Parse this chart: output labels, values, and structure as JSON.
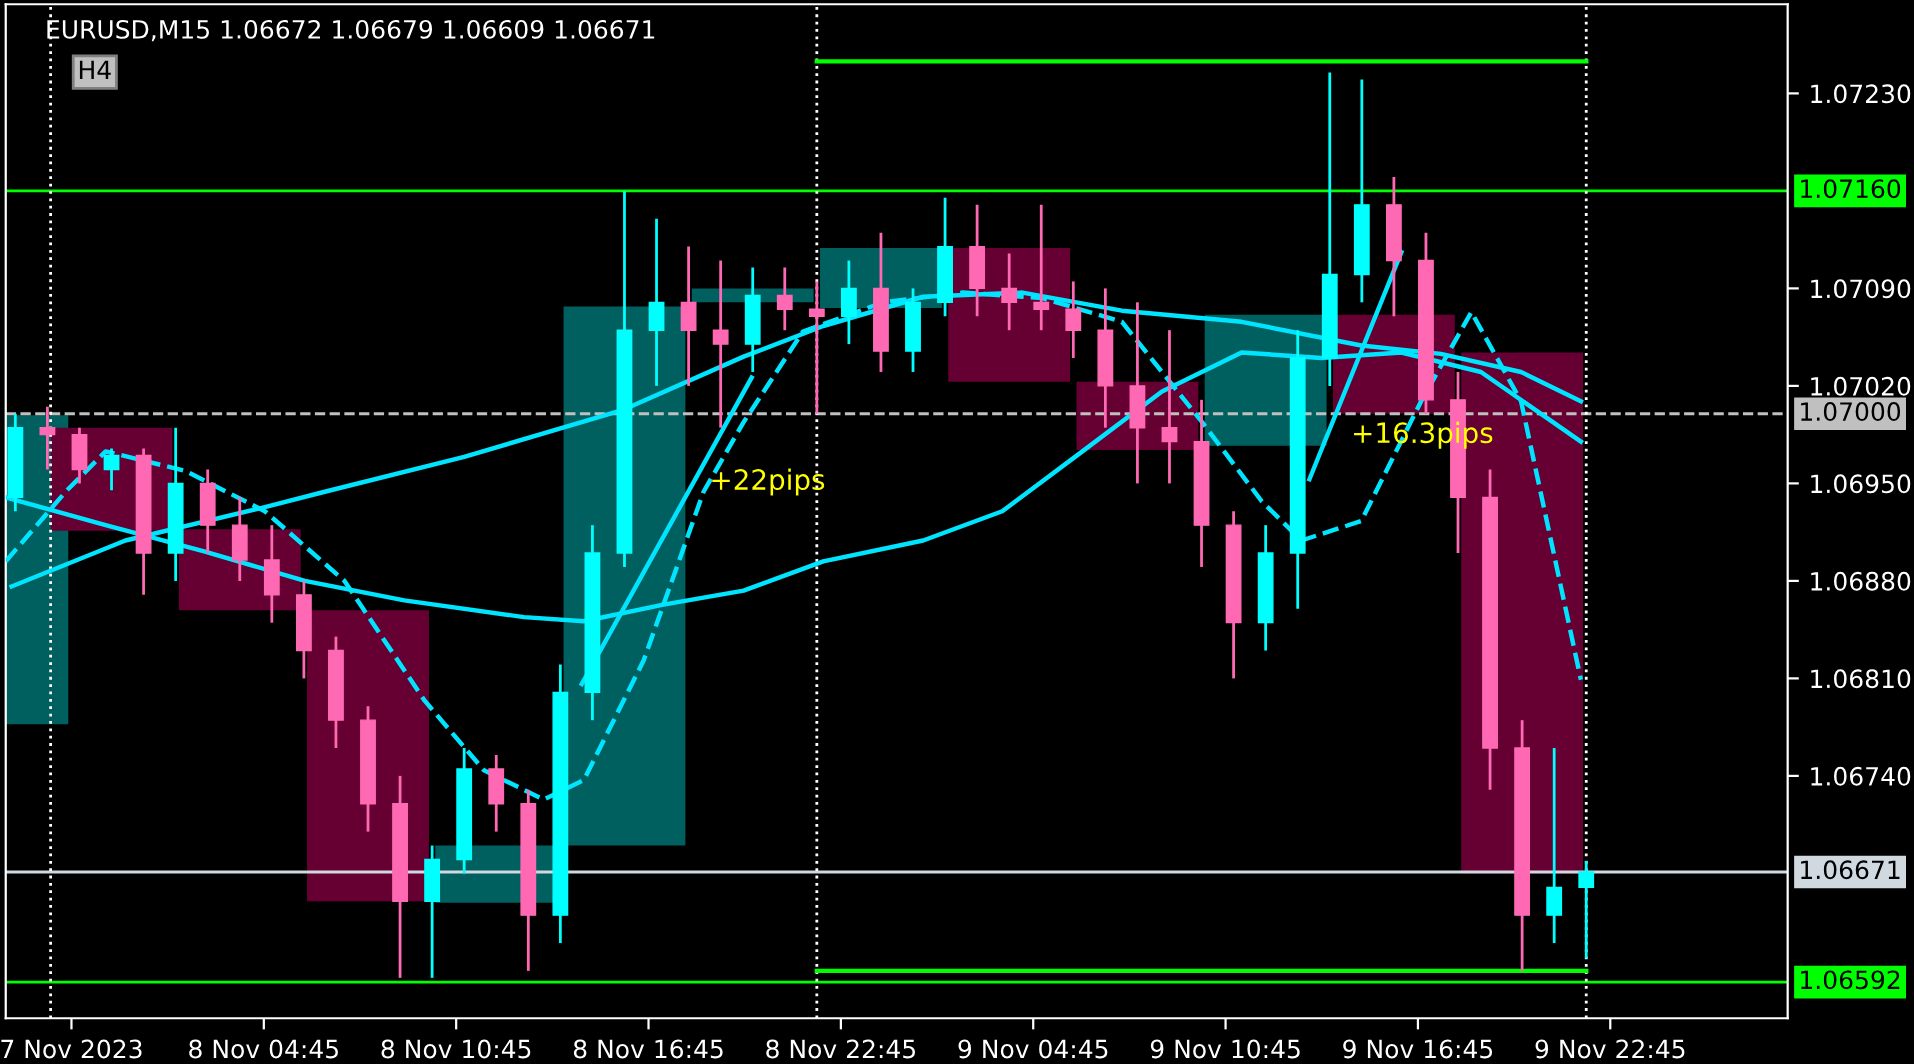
{
  "chart_data": {
    "type": "candlestick",
    "title": "EURUSD,M15 1.06672 1.06679 1.06609 1.06671",
    "x": [
      "2023-11-07T21:00",
      "2023-11-07T22:00",
      "2023-11-07T23:00",
      "2023-11-08T00:00",
      "2023-11-08T01:00",
      "2023-11-08T02:00",
      "2023-11-08T03:00",
      "2023-11-08T04:00",
      "2023-11-08T05:00",
      "2023-11-08T06:00",
      "2023-11-08T07:00",
      "2023-11-08T08:00",
      "2023-11-08T09:00",
      "2023-11-08T10:00",
      "2023-11-08T11:00",
      "2023-11-08T12:00",
      "2023-11-08T13:00",
      "2023-11-08T14:00",
      "2023-11-08T15:00",
      "2023-11-08T16:00",
      "2023-11-08T17:00",
      "2023-11-08T18:00",
      "2023-11-08T19:00",
      "2023-11-08T20:00",
      "2023-11-08T21:00",
      "2023-11-08T22:00",
      "2023-11-08T23:00",
      "2023-11-09T00:00",
      "2023-11-09T01:00",
      "2023-11-09T02:00",
      "2023-11-09T03:00",
      "2023-11-09T04:00",
      "2023-11-09T05:00",
      "2023-11-09T06:00",
      "2023-11-09T07:00",
      "2023-11-09T08:00",
      "2023-11-09T09:00",
      "2023-11-09T10:00",
      "2023-11-09T11:00",
      "2023-11-09T12:00",
      "2023-11-09T13:00",
      "2023-11-09T14:00",
      "2023-11-09T15:00",
      "2023-11-09T16:00",
      "2023-11-09T17:00",
      "2023-11-09T18:00",
      "2023-11-09T19:00",
      "2023-11-09T20:00",
      "2023-11-09T21:00",
      "2023-11-09T22:00"
    ],
    "ohlc": [
      [
        1.0694,
        1.07,
        1.0693,
        1.0699
      ],
      [
        1.0699,
        1.07005,
        1.0696,
        1.06985
      ],
      [
        1.06985,
        1.0699,
        1.0695,
        1.0696
      ],
      [
        1.0696,
        1.06975,
        1.06945,
        1.0697
      ],
      [
        1.0697,
        1.06975,
        1.0687,
        1.069
      ],
      [
        1.069,
        1.0699,
        1.0688,
        1.0695
      ],
      [
        1.0695,
        1.0696,
        1.069,
        1.0692
      ],
      [
        1.0692,
        1.0694,
        1.0688,
        1.06895
      ],
      [
        1.06895,
        1.0692,
        1.0685,
        1.0687
      ],
      [
        1.0687,
        1.0688,
        1.0681,
        1.0683
      ],
      [
        1.0683,
        1.0684,
        1.0676,
        1.0678
      ],
      [
        1.0678,
        1.0679,
        1.067,
        1.0672
      ],
      [
        1.0672,
        1.0674,
        1.06595,
        1.0665
      ],
      [
        1.0665,
        1.0669,
        1.06595,
        1.0668
      ],
      [
        1.0668,
        1.0676,
        1.0667,
        1.06745
      ],
      [
        1.06745,
        1.06755,
        1.067,
        1.0672
      ],
      [
        1.0672,
        1.0673,
        1.066,
        1.0664
      ],
      [
        1.0664,
        1.0682,
        1.0662,
        1.068
      ],
      [
        1.068,
        1.0692,
        1.0678,
        1.069
      ],
      [
        1.069,
        1.0716,
        1.0689,
        1.0706
      ],
      [
        1.0706,
        1.0714,
        1.0702,
        1.0708
      ],
      [
        1.0708,
        1.0712,
        1.0702,
        1.0706
      ],
      [
        1.0706,
        1.0711,
        1.0699,
        1.0705
      ],
      [
        1.0705,
        1.07105,
        1.0703,
        1.07085
      ],
      [
        1.07085,
        1.07105,
        1.0706,
        1.07075
      ],
      [
        1.07075,
        1.07095,
        1.07,
        1.0707
      ],
      [
        1.0707,
        1.0711,
        1.0705,
        1.0709
      ],
      [
        1.0709,
        1.0713,
        1.0703,
        1.07045
      ],
      [
        1.07045,
        1.0709,
        1.0703,
        1.0708
      ],
      [
        1.0708,
        1.07155,
        1.0707,
        1.0712
      ],
      [
        1.0712,
        1.0715,
        1.0707,
        1.0709
      ],
      [
        1.0709,
        1.07115,
        1.0706,
        1.0708
      ],
      [
        1.0708,
        1.0715,
        1.0706,
        1.07075
      ],
      [
        1.07075,
        1.07095,
        1.0704,
        1.0706
      ],
      [
        1.0706,
        1.0709,
        1.0699,
        1.0702
      ],
      [
        1.0702,
        1.0708,
        1.0695,
        1.0699
      ],
      [
        1.0699,
        1.0706,
        1.0695,
        1.0698
      ],
      [
        1.0698,
        1.0701,
        1.0689,
        1.0692
      ],
      [
        1.0692,
        1.0693,
        1.0681,
        1.0685
      ],
      [
        1.0685,
        1.0692,
        1.0683,
        1.069
      ],
      [
        1.069,
        1.0706,
        1.0686,
        1.0704
      ],
      [
        1.0704,
        1.07245,
        1.0702,
        1.071
      ],
      [
        1.071,
        1.0724,
        1.0708,
        1.0715
      ],
      [
        1.0715,
        1.0717,
        1.0707,
        1.0711
      ],
      [
        1.0711,
        1.0713,
        1.07,
        1.0701
      ],
      [
        1.0701,
        1.0703,
        1.069,
        1.0694
      ],
      [
        1.0694,
        1.0696,
        1.0673,
        1.0676
      ],
      [
        1.0676,
        1.0678,
        1.066,
        1.0664
      ],
      [
        1.0664,
        1.0676,
        1.0662,
        1.0666
      ],
      [
        1.0666,
        1.06679,
        1.06609,
        1.06671
      ]
    ],
    "colors": [
      "#00ffff",
      "#ff69b4",
      "#ff69b4",
      "#00ffff",
      "#ff69b4",
      "#00ffff",
      "#ff69b4",
      "#ff69b4",
      "#ff69b4",
      "#ff69b4",
      "#ff69b4",
      "#ff69b4",
      "#ff69b4",
      "#00ffff",
      "#00ffff",
      "#ff69b4",
      "#ff69b4",
      "#00ffff",
      "#00ffff",
      "#00ffff",
      "#00ffff",
      "#ff69b4",
      "#ff69b4",
      "#00ffff",
      "#ff69b4",
      "#ff69b4",
      "#00ffff",
      "#ff69b4",
      "#00ffff",
      "#00ffff",
      "#ff69b4",
      "#ff69b4",
      "#ff69b4",
      "#ff69b4",
      "#ff69b4",
      "#ff69b4",
      "#ff69b4",
      "#ff69b4",
      "#ff69b4",
      "#00ffff",
      "#00ffff",
      "#00ffff",
      "#00ffff",
      "#ff69b4",
      "#ff69b4",
      "#ff69b4",
      "#ff69b4",
      "#ff69b4",
      "#00ffff",
      "#00ffff"
    ],
    "series": [
      {
        "type": "bar",
        "x": [
          "2023-11-07T20:45",
          "2023-11-08T00:00",
          "2023-11-08T04:00",
          "2023-11-08T08:00",
          "2023-11-08T12:00",
          "2023-11-08T16:00",
          "2023-11-08T20:00",
          "2023-11-09T00:00",
          "2023-11-09T04:00",
          "2023-11-09T08:00",
          "2023-11-09T12:00",
          "2023-11-09T16:00",
          "2023-11-09T20:00"
        ],
        "base": [
          1.06777,
          1.06916,
          1.06859,
          1.0665,
          1.06649,
          1.0669,
          1.0708,
          1.07076,
          1.07023,
          1.06974,
          1.06977,
          1.07,
          1.0667
        ],
        "values": [
          0.00222,
          0.00074,
          0.00058,
          0.00209,
          0.00041,
          0.00387,
          0.0001,
          0.00043,
          0.00096,
          0.00049,
          0.00094,
          0.00071,
          0.00374
        ],
        "colors": [
          "#006060",
          "#660033",
          "#660033",
          "#660033",
          "#006060",
          "#006060",
          "#006060",
          "#006060",
          "#660033",
          "#660033",
          "#006060",
          "#660033",
          "#660033"
        ]
      },
      {
        "type": "line",
        "color": "#00e5ff",
        "line_style": "solid",
        "x": [
          "2023-11-07T20:53",
          "2023-11-08T00:26",
          "2023-11-08T04:47",
          "2023-11-08T06:39",
          "2023-11-08T11:00",
          "2023-11-08T15:59",
          "2023-11-08T19:43",
          "2023-11-08T22:12",
          "2023-11-09T01:19",
          "2023-11-09T04:25",
          "2023-11-09T07:31",
          "2023-11-09T11:15",
          "2023-11-09T14:59",
          "2023-11-09T17:28",
          "2023-11-09T19:58",
          "2023-11-09T21:50"
        ],
        "values": [
          1.06876,
          1.06909,
          1.06933,
          1.06944,
          1.06969,
          1.07003,
          1.07041,
          1.07063,
          1.07084,
          1.07087,
          1.07074,
          1.07066,
          1.07049,
          1.07043,
          1.0703,
          1.07009
        ]
      },
      {
        "type": "line",
        "color": "#00e5ff",
        "line_style": "solid",
        "x": [
          "2023-11-07T20:42",
          "2023-11-07T23:49",
          "2023-11-08T02:55",
          "2023-11-08T06:02",
          "2023-11-08T09:08",
          "2023-11-08T12:52",
          "2023-11-08T14:44",
          "2023-11-08T17:13",
          "2023-11-08T19:43",
          "2023-11-08T22:12",
          "2023-11-09T01:19",
          "2023-11-09T03:47",
          "2023-11-09T06:17",
          "2023-11-09T08:46",
          "2023-11-09T11:15",
          "2023-11-09T13:44",
          "2023-11-09T16:14",
          "2023-11-09T18:43",
          "2023-11-09T21:50"
        ],
        "values": [
          1.0694,
          1.0692,
          1.06901,
          1.0688,
          1.06866,
          1.06854,
          1.06851,
          1.06863,
          1.06873,
          1.06894,
          1.06909,
          1.0693,
          1.06973,
          1.07016,
          1.07044,
          1.0704,
          1.07044,
          1.0703,
          1.0698
        ]
      },
      {
        "type": "line",
        "color": "#00e5ff",
        "line_style": "dashed",
        "x": [
          "2023-11-07T20:42",
          "2023-11-07T22:34",
          "2023-11-07T23:49",
          "2023-11-08T02:18",
          "2023-11-08T04:47",
          "2023-11-08T07:16",
          "2023-11-08T09:46",
          "2023-11-08T11:37",
          "2023-11-08T13:29",
          "2023-11-08T14:44",
          "2023-11-08T16:36",
          "2023-11-08T18:28",
          "2023-11-08T19:43",
          "2023-11-08T21:34",
          "2023-11-09T00:04",
          "2023-11-09T02:33",
          "2023-11-09T05:02",
          "2023-11-09T07:31",
          "2023-11-09T10:01",
          "2023-11-09T11:53",
          "2023-11-09T13:07",
          "2023-11-09T14:59",
          "2023-11-09T16:51",
          "2023-11-09T18:25",
          "2023-11-09T19:58",
          "2023-11-09T21:50"
        ],
        "values": [
          1.06894,
          1.06944,
          1.06973,
          1.06959,
          1.0693,
          1.0688,
          1.06794,
          1.06744,
          1.06723,
          1.06737,
          1.06823,
          1.06944,
          1.06994,
          1.07059,
          1.0708,
          1.07087,
          1.07083,
          1.07066,
          1.06994,
          1.06937,
          1.06909,
          1.06923,
          1.07009,
          1.07073,
          1.07009,
          1.06809
        ]
      },
      {
        "type": "line",
        "color": "#00e5ff",
        "line_style": "solid",
        "x": [
          "2023-11-08T14:40",
          "2023-11-08T19:58"
        ],
        "values": [
          1.06806,
          1.07026
        ]
      },
      {
        "type": "line",
        "color": "#00e5ff",
        "line_style": "solid",
        "x": [
          "2023-11-09T13:22",
          "2023-11-09T16:14"
        ],
        "values": [
          1.06953,
          1.07116
        ]
      },
      {
        "type": "line",
        "color": "#00ff00",
        "line_style": "solid",
        "x": [
          "2023-11-08T22:00",
          "2023-11-09T22:00"
        ],
        "values": [
          1.07253,
          1.07253
        ]
      },
      {
        "type": "line",
        "color": "#00ff00",
        "line_style": "solid",
        "x": [
          "2023-11-08T22:00",
          "2023-11-09T22:00"
        ],
        "values": [
          1.066,
          1.066
        ]
      }
    ],
    "xlim": [
      "2023-11-07T20:42",
      "2023-11-10T04:17"
    ],
    "xticks": [
      {
        "value": "2023-11-07T22:45",
        "label": "7 Nov 2023"
      },
      {
        "value": "2023-11-08T04:45",
        "label": "8 Nov 04:45"
      },
      {
        "value": "2023-11-08T10:45",
        "label": "8 Nov 10:45"
      },
      {
        "value": "2023-11-08T16:45",
        "label": "8 Nov 16:45"
      },
      {
        "value": "2023-11-08T22:45",
        "label": "8 Nov 22:45"
      },
      {
        "value": "2023-11-09T04:45",
        "label": "9 Nov 04:45"
      },
      {
        "value": "2023-11-09T10:45",
        "label": "9 Nov 10:45"
      },
      {
        "value": "2023-11-09T16:45",
        "label": "9 Nov 16:45"
      },
      {
        "value": "2023-11-09T22:45",
        "label": "9 Nov 22:45"
      }
    ],
    "ylim": [
      1.06566,
      1.07294
    ],
    "yticks": [
      {
        "value": 1.0723,
        "label": "1.07230"
      },
      {
        "value": 1.0709,
        "label": "1.07090"
      },
      {
        "value": 1.0702,
        "label": "1.07020"
      },
      {
        "value": 1.0695,
        "label": "1.06950"
      },
      {
        "value": 1.0688,
        "label": "1.06880"
      },
      {
        "value": 1.0681,
        "label": "1.06810"
      },
      {
        "value": 1.0674,
        "label": "1.06740"
      }
    ],
    "ref_lines": [
      {
        "axis": "y",
        "value": 1.0716,
        "label": "1.07160",
        "color": "#00ff00",
        "line_style": "solid"
      },
      {
        "axis": "y",
        "value": 1.07,
        "label": "1.07000",
        "color": "#c0c0c0",
        "line_style": "dashed"
      },
      {
        "axis": "y",
        "value": 1.06671,
        "label": "1.06671",
        "color": "#d0d8e0",
        "line_style": "solid"
      },
      {
        "axis": "y",
        "value": 1.06592,
        "label": "1.06592",
        "color": "#00ff00",
        "line_style": "solid"
      },
      {
        "axis": "x",
        "value": "2023-11-07T22:06",
        "color": "#ffffff",
        "line_style": "dotted"
      },
      {
        "axis": "x",
        "value": "2023-11-08T22:00",
        "color": "#ffffff",
        "line_style": "dotted"
      },
      {
        "axis": "x",
        "value": "2023-11-09T22:00",
        "color": "#ffffff",
        "line_style": "dotted"
      }
    ],
    "annotations": [
      "H4",
      {
        "text": "+22pips",
        "x": "2023-11-08T18:39",
        "y": 1.06951
      },
      "+16.3pips"
    ],
    "grid": false,
    "legend": false
  }
}
